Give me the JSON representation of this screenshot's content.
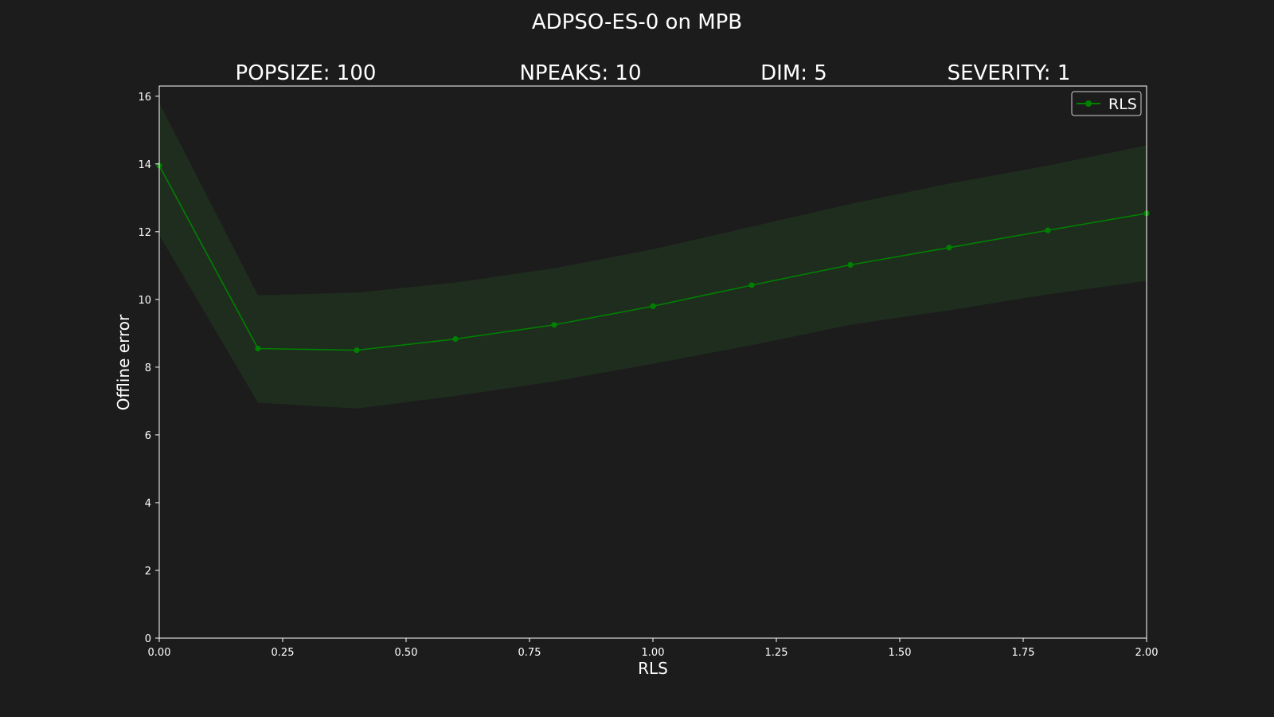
{
  "chart_data": {
    "type": "line",
    "title": "ADPSO-ES-0 on MPB",
    "subtitles": [
      "POPSIZE: 100",
      "NPEAKS: 10",
      "DIM: 5",
      "SEVERITY: 1"
    ],
    "xlabel": "RLS",
    "ylabel": "Offline error",
    "xlim": [
      0,
      2
    ],
    "ylim": [
      0,
      16.3
    ],
    "xticks": [
      0,
      0.25,
      0.5,
      0.75,
      1.0,
      1.25,
      1.5,
      1.75,
      2.0
    ],
    "xtick_labels": [
      "0.00",
      "0.25",
      "0.50",
      "0.75",
      "1.00",
      "1.25",
      "1.50",
      "1.75",
      "2.00"
    ],
    "yticks": [
      0,
      2,
      4,
      6,
      8,
      10,
      12,
      14,
      16
    ],
    "ytick_labels": [
      "0",
      "2",
      "4",
      "6",
      "8",
      "10",
      "12",
      "14",
      "16"
    ],
    "legend_position": "top-right",
    "grid": false,
    "series": [
      {
        "name": "RLS",
        "color": "#008000",
        "band_color": "#1f2d1f",
        "x": [
          0.0,
          0.2,
          0.4,
          0.6,
          0.8,
          1.0,
          1.2,
          1.4,
          1.6,
          1.8,
          2.0
        ],
        "y": [
          13.95,
          8.55,
          8.5,
          8.83,
          9.25,
          9.8,
          10.42,
          11.02,
          11.53,
          12.04,
          12.54
        ],
        "lower": [
          11.9,
          6.95,
          6.78,
          7.15,
          7.58,
          8.1,
          8.65,
          9.25,
          9.68,
          10.15,
          10.55
        ],
        "upper": [
          15.8,
          10.12,
          10.2,
          10.5,
          10.92,
          11.48,
          12.15,
          12.82,
          13.42,
          13.95,
          14.55
        ]
      }
    ],
    "colors": {
      "background": "#1c1c1c",
      "text": "#ffffff",
      "axes": "#ffffff"
    }
  }
}
